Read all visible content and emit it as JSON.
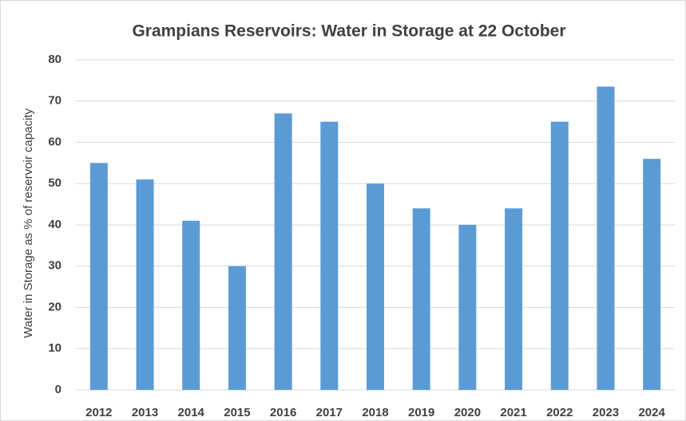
{
  "chart_data": {
    "type": "bar",
    "title": "Grampians Reservoirs: Water in Storage at 22 October",
    "y_label": "Water in Storage as % of reservoir capacity",
    "categories": [
      "2012",
      "2013",
      "2014",
      "2015",
      "2016",
      "2017",
      "2018",
      "2019",
      "2020",
      "2021",
      "2022",
      "2023",
      "2024"
    ],
    "values": [
      55,
      51,
      41,
      30,
      67,
      65,
      50,
      44,
      40,
      44,
      65,
      73.5,
      56
    ],
    "color": "#5b9bd5",
    "ylim": [
      0,
      80
    ],
    "yticks": [
      0,
      10,
      20,
      30,
      40,
      50,
      60,
      70,
      80
    ],
    "grid": true
  }
}
